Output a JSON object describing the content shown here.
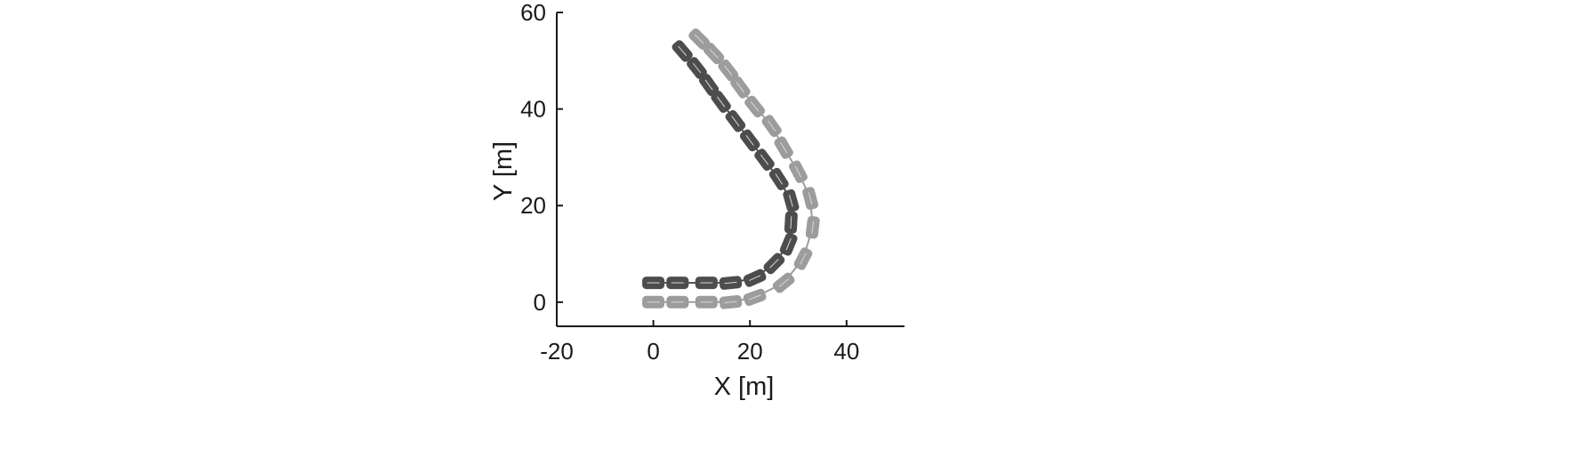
{
  "chart_data": {
    "type": "scatter",
    "xlabel": "X [m]",
    "ylabel": "Y [m]",
    "xlim": [
      -20,
      52
    ],
    "ylim": [
      -5,
      60
    ],
    "x_ticks": [
      "-20",
      "0",
      "20",
      "40"
    ],
    "y_ticks": [
      "0",
      "20",
      "40",
      "60"
    ],
    "grid": false,
    "series": [
      {
        "color": "#4d4d4d",
        "points": [
          [
            0,
            4
          ],
          [
            5,
            4
          ],
          [
            11,
            4
          ],
          [
            16,
            4
          ],
          [
            21,
            5
          ],
          [
            25,
            8
          ],
          [
            28,
            12
          ],
          [
            28.5,
            16.5
          ],
          [
            28.5,
            21
          ],
          [
            26,
            25.5
          ],
          [
            23,
            29.5
          ],
          [
            20,
            33.5
          ],
          [
            17,
            37.5
          ],
          [
            14,
            41.5
          ],
          [
            11.5,
            45
          ],
          [
            9,
            48.5
          ],
          [
            6,
            52
          ]
        ]
      },
      {
        "color": "#9c9c9c",
        "points": [
          [
            0,
            0
          ],
          [
            5,
            0
          ],
          [
            11,
            0
          ],
          [
            16,
            0
          ],
          [
            21,
            1
          ],
          [
            27,
            4
          ],
          [
            31,
            9
          ],
          [
            33,
            15.5
          ],
          [
            32.5,
            21.5
          ],
          [
            30,
            27
          ],
          [
            27,
            32
          ],
          [
            24.5,
            36.5
          ],
          [
            21,
            40.5
          ],
          [
            18,
            44.5
          ],
          [
            15.5,
            48
          ],
          [
            12.5,
            51.5
          ],
          [
            9.5,
            54.5
          ]
        ]
      }
    ]
  }
}
